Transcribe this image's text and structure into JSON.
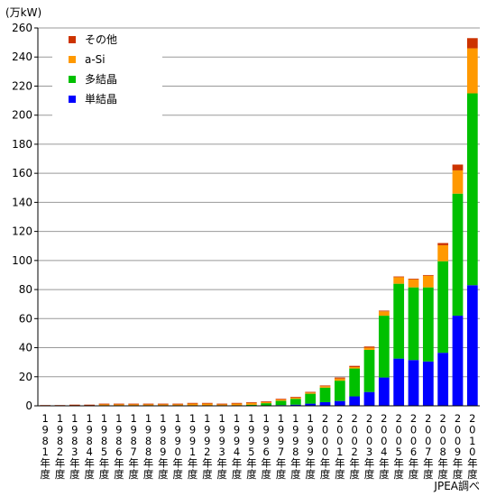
{
  "chart_data": {
    "type": "bar",
    "stacked": true,
    "unit_label": "(万kW)",
    "source_note": "JPEA調べ",
    "ylim": [
      0,
      260
    ],
    "y_ticks": [
      0,
      20,
      40,
      60,
      80,
      100,
      120,
      140,
      160,
      180,
      200,
      220,
      240,
      260
    ],
    "grid": true,
    "legend_position": "top-left",
    "categories": [
      "1981年度",
      "1982年度",
      "1983年度",
      "1984年度",
      "1985年度",
      "1986年度",
      "1987年度",
      "1988年度",
      "1989年度",
      "1990年度",
      "1991年度",
      "1992年度",
      "1993年度",
      "1994年度",
      "1995年度",
      "1996年度",
      "1997年度",
      "1998年度",
      "1999年度",
      "2000年度",
      "2001年度",
      "2002年度",
      "2003年度",
      "2004年度",
      "2005年度",
      "2006年度",
      "2007年度",
      "2008年度",
      "2009年度",
      "2010年度"
    ],
    "series": [
      {
        "name": "単結晶",
        "color": "#0000ff",
        "values": [
          0,
          0,
          0,
          0,
          0,
          0,
          0,
          0,
          0,
          0,
          0,
          0,
          0,
          0,
          0.2,
          0.3,
          0.5,
          0.8,
          1.5,
          2.5,
          3.3,
          6.5,
          9.5,
          19.5,
          32.5,
          31.5,
          30.5,
          36.5,
          62,
          83
        ]
      },
      {
        "name": "多結晶",
        "color": "#00c000",
        "values": [
          0,
          0,
          0,
          0,
          0,
          0,
          0,
          0,
          0,
          0,
          0,
          0,
          0,
          0,
          0.5,
          1.5,
          3,
          4,
          6.8,
          10,
          14,
          19.2,
          29,
          42.5,
          51.5,
          50,
          51,
          63,
          84,
          132
        ]
      },
      {
        "name": "a-Si",
        "color": "#ff9900",
        "values": [
          0,
          0,
          0.3,
          0.3,
          1,
          1,
          1,
          1,
          1,
          1,
          1.5,
          1.5,
          1,
          1.5,
          1.3,
          0.8,
          0.8,
          0.8,
          0.8,
          1,
          1.5,
          1,
          1.5,
          3,
          4.5,
          5.5,
          8,
          11,
          16,
          31
        ]
      },
      {
        "name": "その他",
        "color": "#cc3300",
        "values": [
          0.5,
          0.5,
          0.5,
          0.5,
          0.5,
          0.5,
          0.5,
          0.5,
          0.5,
          0.5,
          0.5,
          0.5,
          0.5,
          0.5,
          0.5,
          0.5,
          0.5,
          0.5,
          0.5,
          0.5,
          0.7,
          0.8,
          0.8,
          0.5,
          0.5,
          0.5,
          0.5,
          1.5,
          4,
          7
        ]
      }
    ]
  }
}
